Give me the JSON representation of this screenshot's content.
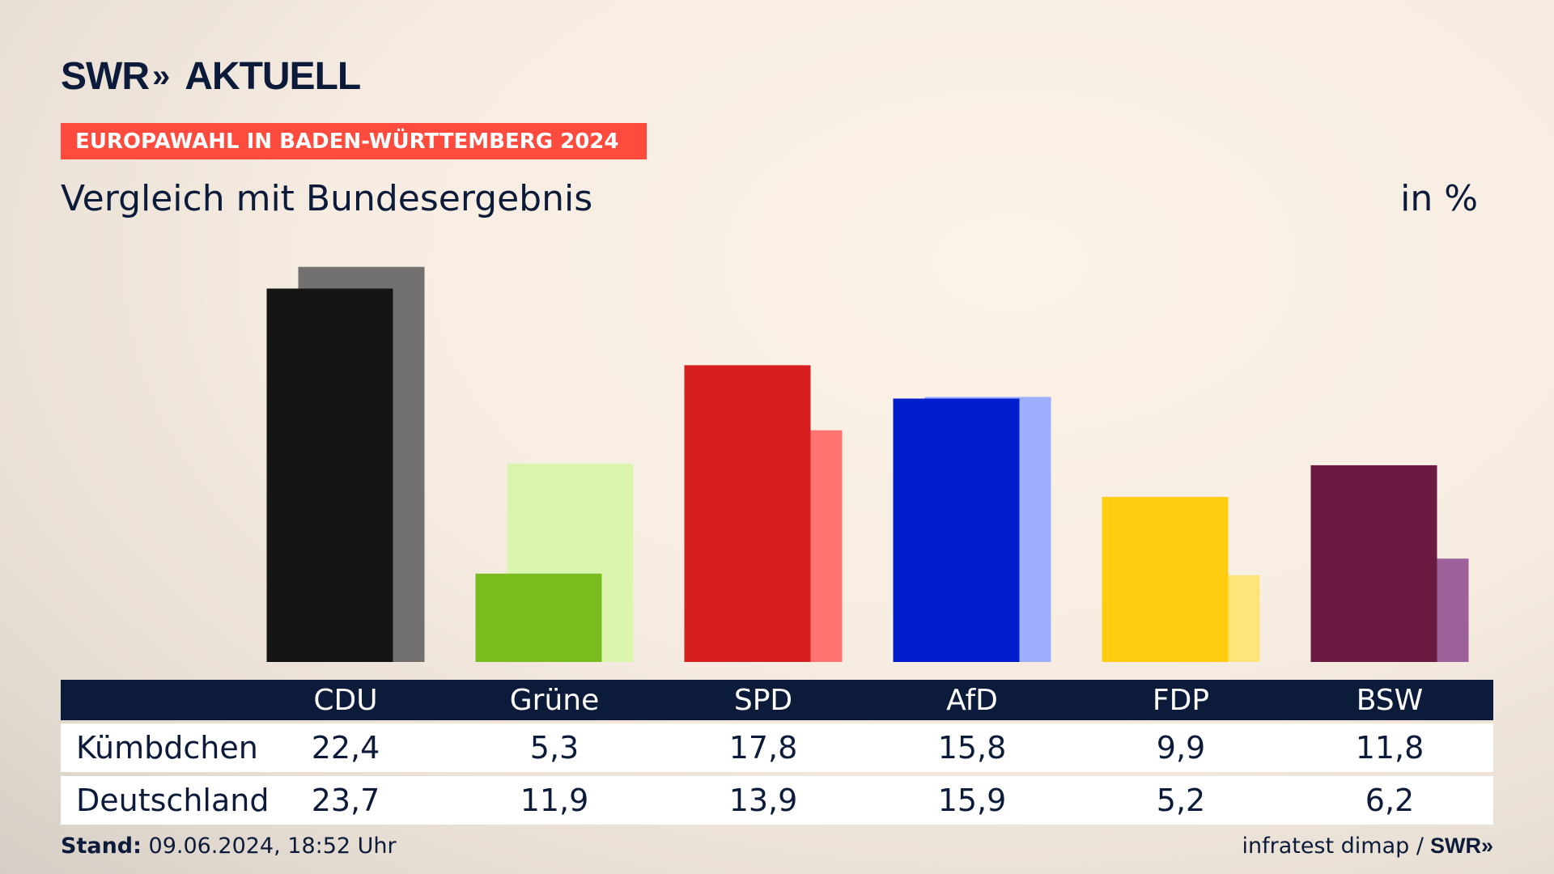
{
  "header": {
    "logo_text": "SWR",
    "logo_chevrons": "»",
    "logo_suffix": "AKTUELL",
    "banner": "EUROPAWAHL IN BADEN-WÜRTTEMBERG 2024",
    "title": "Vergleich mit Bundesergebnis",
    "unit": "in %"
  },
  "chart_data": {
    "type": "bar",
    "categories": [
      "CDU",
      "Grüne",
      "SPD",
      "AfD",
      "FDP",
      "BSW"
    ],
    "series": [
      {
        "name": "Kümbdchen",
        "values": [
          22.4,
          5.3,
          17.8,
          15.8,
          9.9,
          11.8
        ],
        "colors": [
          "#151515",
          "#79bc1e",
          "#d81f20",
          "#001ecb",
          "#ffcd0f",
          "#6b1a41"
        ]
      },
      {
        "name": "Deutschland",
        "values": [
          23.7,
          11.9,
          13.9,
          15.9,
          5.2,
          6.2
        ],
        "colors": [
          "#737170",
          "#d9f5ae",
          "#ff7470",
          "#9daeff",
          "#ffe47a",
          "#9d6199"
        ]
      }
    ]
  },
  "table": {
    "rows": [
      {
        "label": "Kümbdchen",
        "values": [
          "22,4",
          "5,3",
          "17,8",
          "15,8",
          "9,9",
          "11,8"
        ]
      },
      {
        "label": "Deutschland",
        "values": [
          "23,7",
          "11,9",
          "13,9",
          "15,9",
          "5,2",
          "6,2"
        ]
      }
    ]
  },
  "footer": {
    "stand_label": "Stand:",
    "stand_value": "09.06.2024, 18:52 Uhr",
    "source": "infratest dimap /",
    "source_logo": "SWR»"
  }
}
